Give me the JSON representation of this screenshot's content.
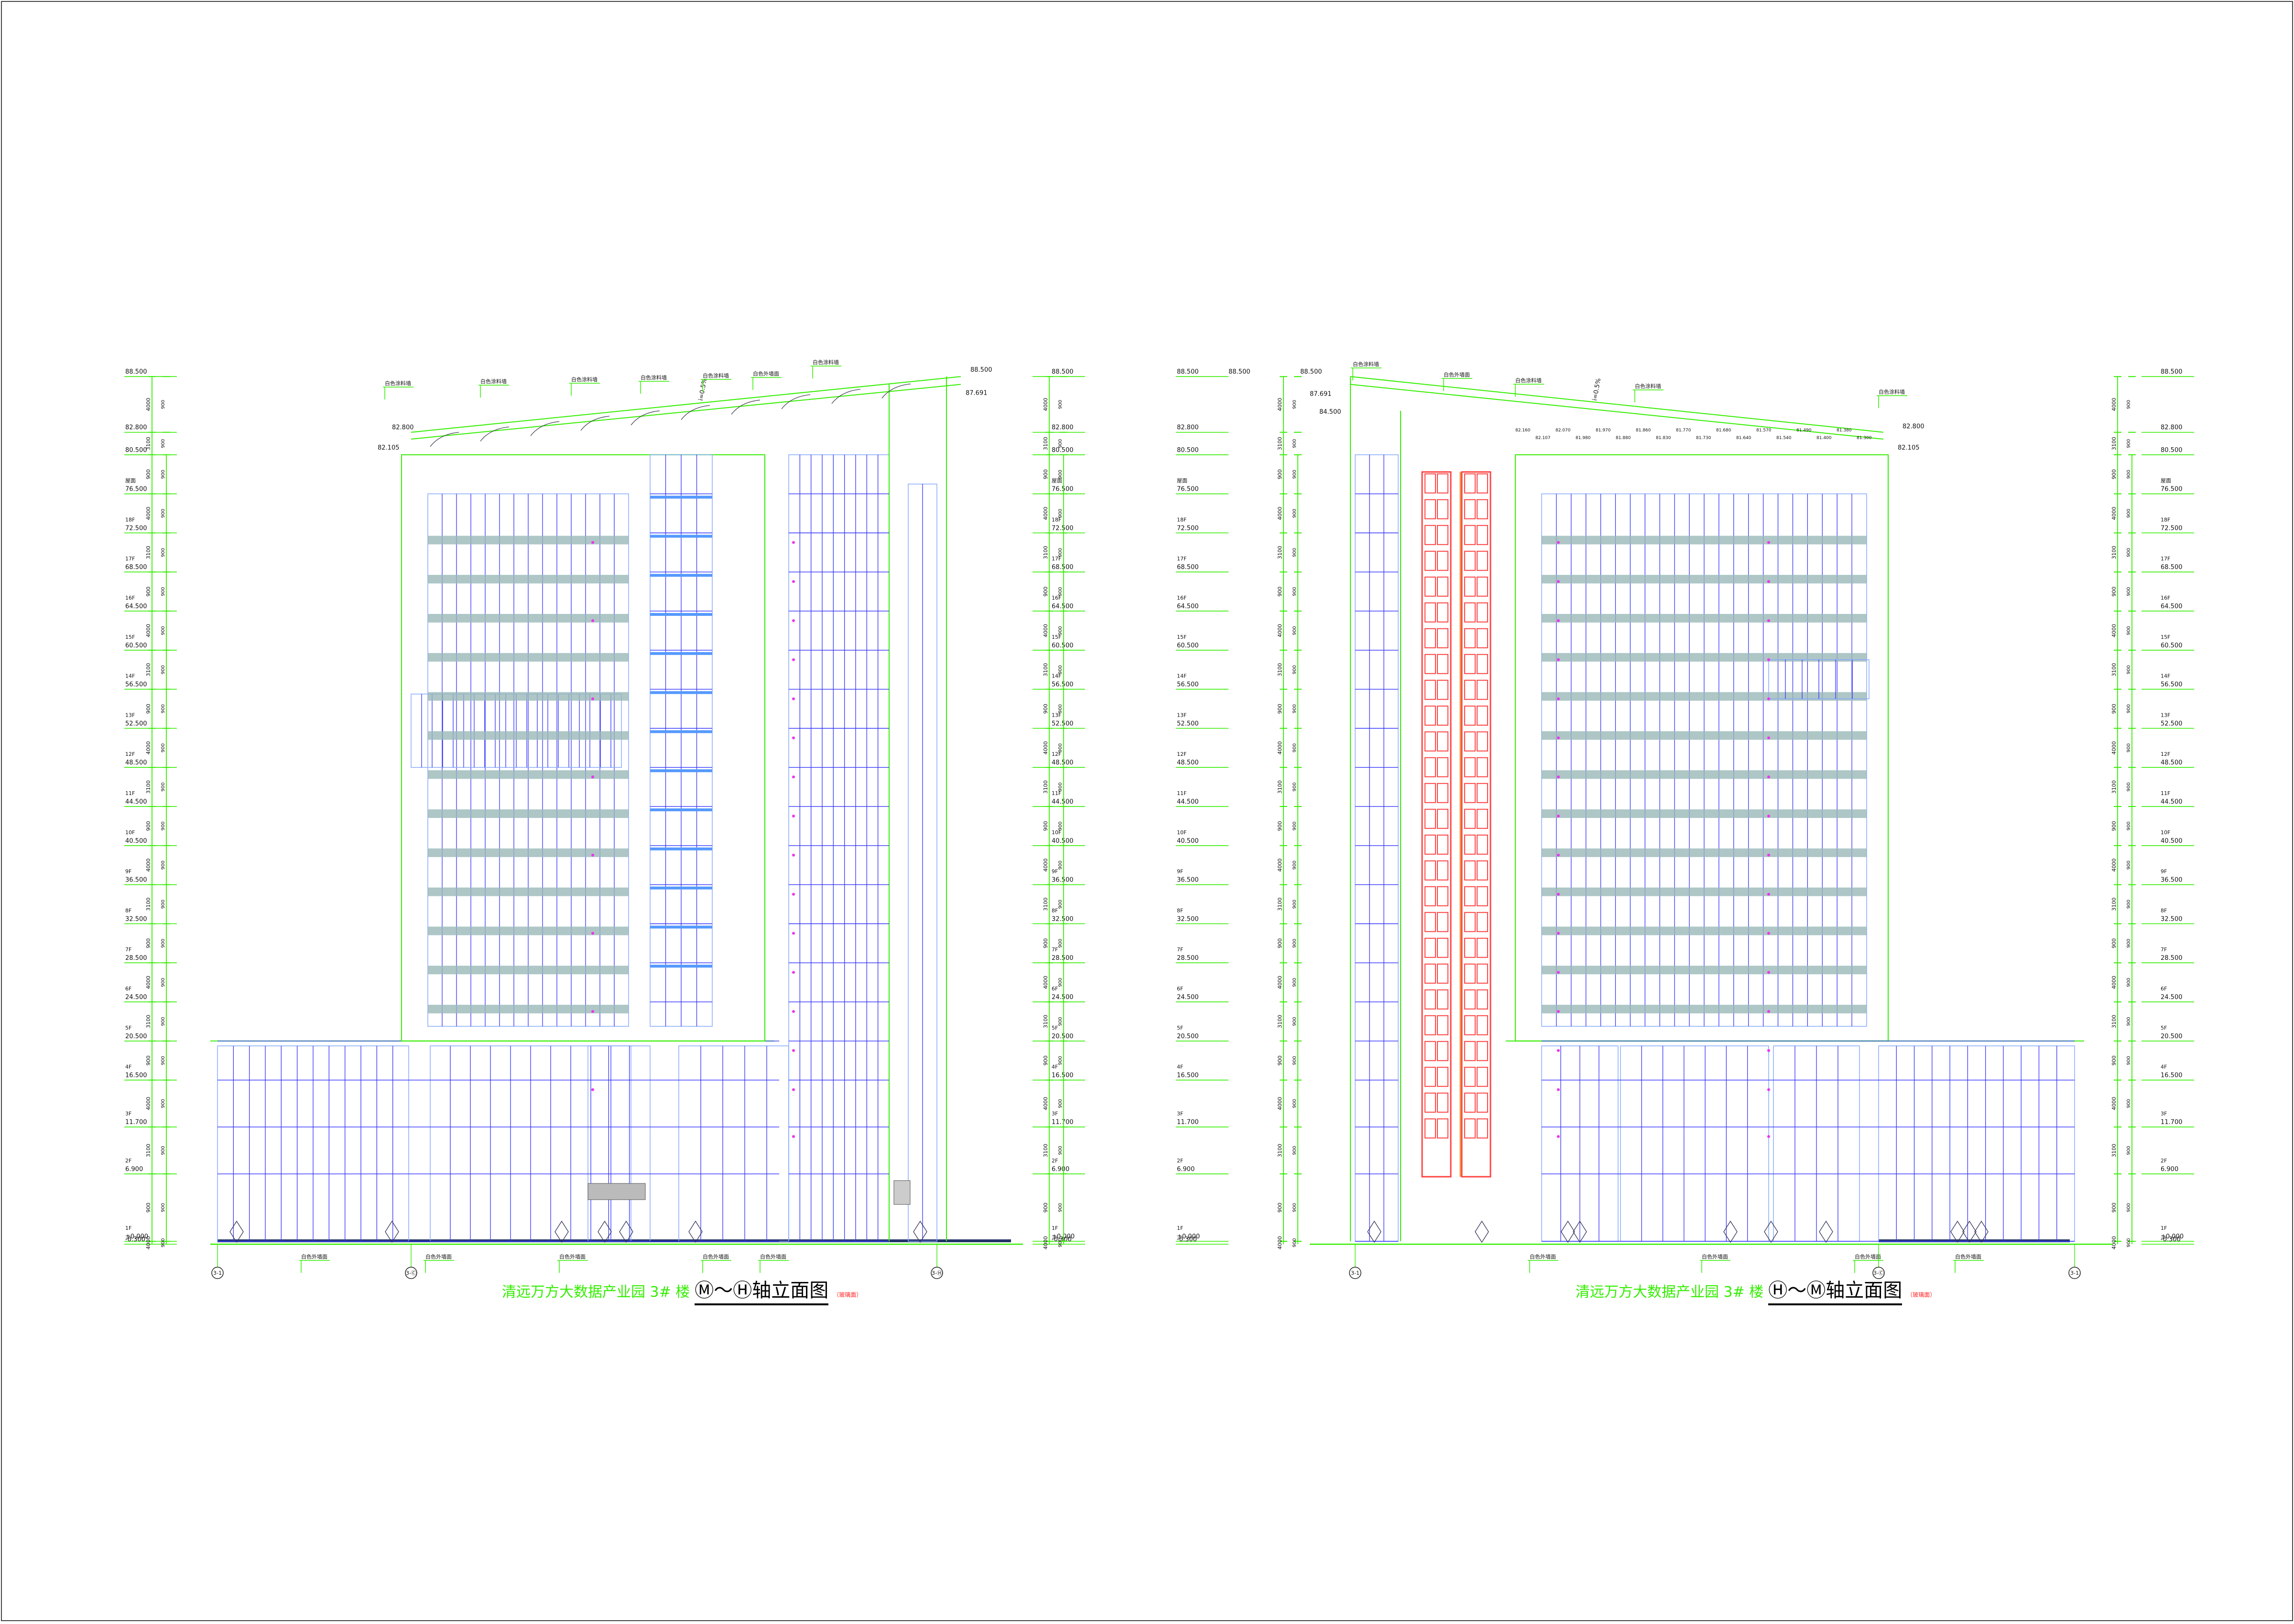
{
  "drawing": {
    "elevations": [
      {
        "title_prefix": "清远万方大数据产业园 3# 楼",
        "title_axis": "Ⓜ～Ⓗ轴立面图",
        "title_note": "（玻璃面）",
        "axis_labels": [
          "3-1",
          "3-Ⓒ",
          "3-Ⓗ"
        ],
        "roof_levels": {
          "top": "88.500",
          "tier": "87.691",
          "parapet_high": "82.800",
          "parapet_low": "82.105"
        },
        "callouts": [
          "白色涂料墙",
          "白色涂料墙",
          "白色涂料墙",
          "白色涂料墙",
          "白色涂料墙",
          "白色外墙面",
          "白色涂料墙"
        ],
        "base_callouts": [
          "白色外墙面",
          "白色外墙面",
          "白色外墙面",
          "白色外墙面",
          "白色外墙面"
        ]
      },
      {
        "title_prefix": "清远万方大数据产业园 3# 楼",
        "title_axis": "Ⓗ～Ⓜ轴立面图",
        "title_note": "（玻璃面）",
        "axis_labels": [
          "3-1",
          "3-Ⓒ",
          "3-1"
        ],
        "roof_levels": {
          "top": "88.500",
          "tier": "87.691",
          "roof2": "84.500",
          "parapet_high": "82.800",
          "parapet_low": "82.105"
        },
        "callouts": [
          "白色涂料墙",
          "白色外墙面",
          "白色涂料墙",
          "白色涂料墙",
          "白色涂料墙"
        ],
        "base_callouts": [
          "白色外墙面",
          "白色外墙面",
          "白色外墙面",
          "白色外墙面"
        ]
      }
    ],
    "levels": [
      {
        "floor": "",
        "elev": "88.500"
      },
      {
        "floor": "",
        "elev": "82.800"
      },
      {
        "floor": "",
        "elev": "80.500"
      },
      {
        "floor": "屋面",
        "elev": "76.500"
      },
      {
        "floor": "18F",
        "elev": "72.500"
      },
      {
        "floor": "17F",
        "elev": "68.500"
      },
      {
        "floor": "16F",
        "elev": "64.500"
      },
      {
        "floor": "15F",
        "elev": "60.500"
      },
      {
        "floor": "14F",
        "elev": "56.500"
      },
      {
        "floor": "13F",
        "elev": "52.500"
      },
      {
        "floor": "12F",
        "elev": "48.500"
      },
      {
        "floor": "11F",
        "elev": "44.500"
      },
      {
        "floor": "10F",
        "elev": "40.500"
      },
      {
        "floor": "9F",
        "elev": "36.500"
      },
      {
        "floor": "8F",
        "elev": "32.500"
      },
      {
        "floor": "7F",
        "elev": "28.500"
      },
      {
        "floor": "6F",
        "elev": "24.500"
      },
      {
        "floor": "5F",
        "elev": "20.500"
      },
      {
        "floor": "4F",
        "elev": "16.500"
      },
      {
        "floor": "3F",
        "elev": "11.700"
      },
      {
        "floor": "2F",
        "elev": "6.900"
      },
      {
        "floor": "1F",
        "elev": "±0.000"
      },
      {
        "floor": "",
        "elev": "-0.300"
      }
    ],
    "dimension_labels": [
      "4000",
      "2300",
      "900",
      "3100",
      "2500",
      "1500",
      "2900",
      "3400",
      "6300",
      "300"
    ],
    "slope_text": "i=0.5%",
    "small_elevs": [
      "82.160",
      "82.107",
      "82.070",
      "81.980",
      "81.970",
      "81.880",
      "81.860",
      "81.830",
      "81.770",
      "81.730",
      "81.680",
      "81.640",
      "81.570",
      "81.540",
      "81.490",
      "81.400",
      "81.380",
      "81.300"
    ]
  },
  "colors": {
    "dimension": "#33ee00",
    "glazing": "#3333ff",
    "glazing_frame": "#88aaff",
    "louver": "#9ab8b8",
    "highlight": "#ff4444",
    "accent": "#ee33ee",
    "title_red": "#ff2020",
    "ground": "#223366"
  }
}
